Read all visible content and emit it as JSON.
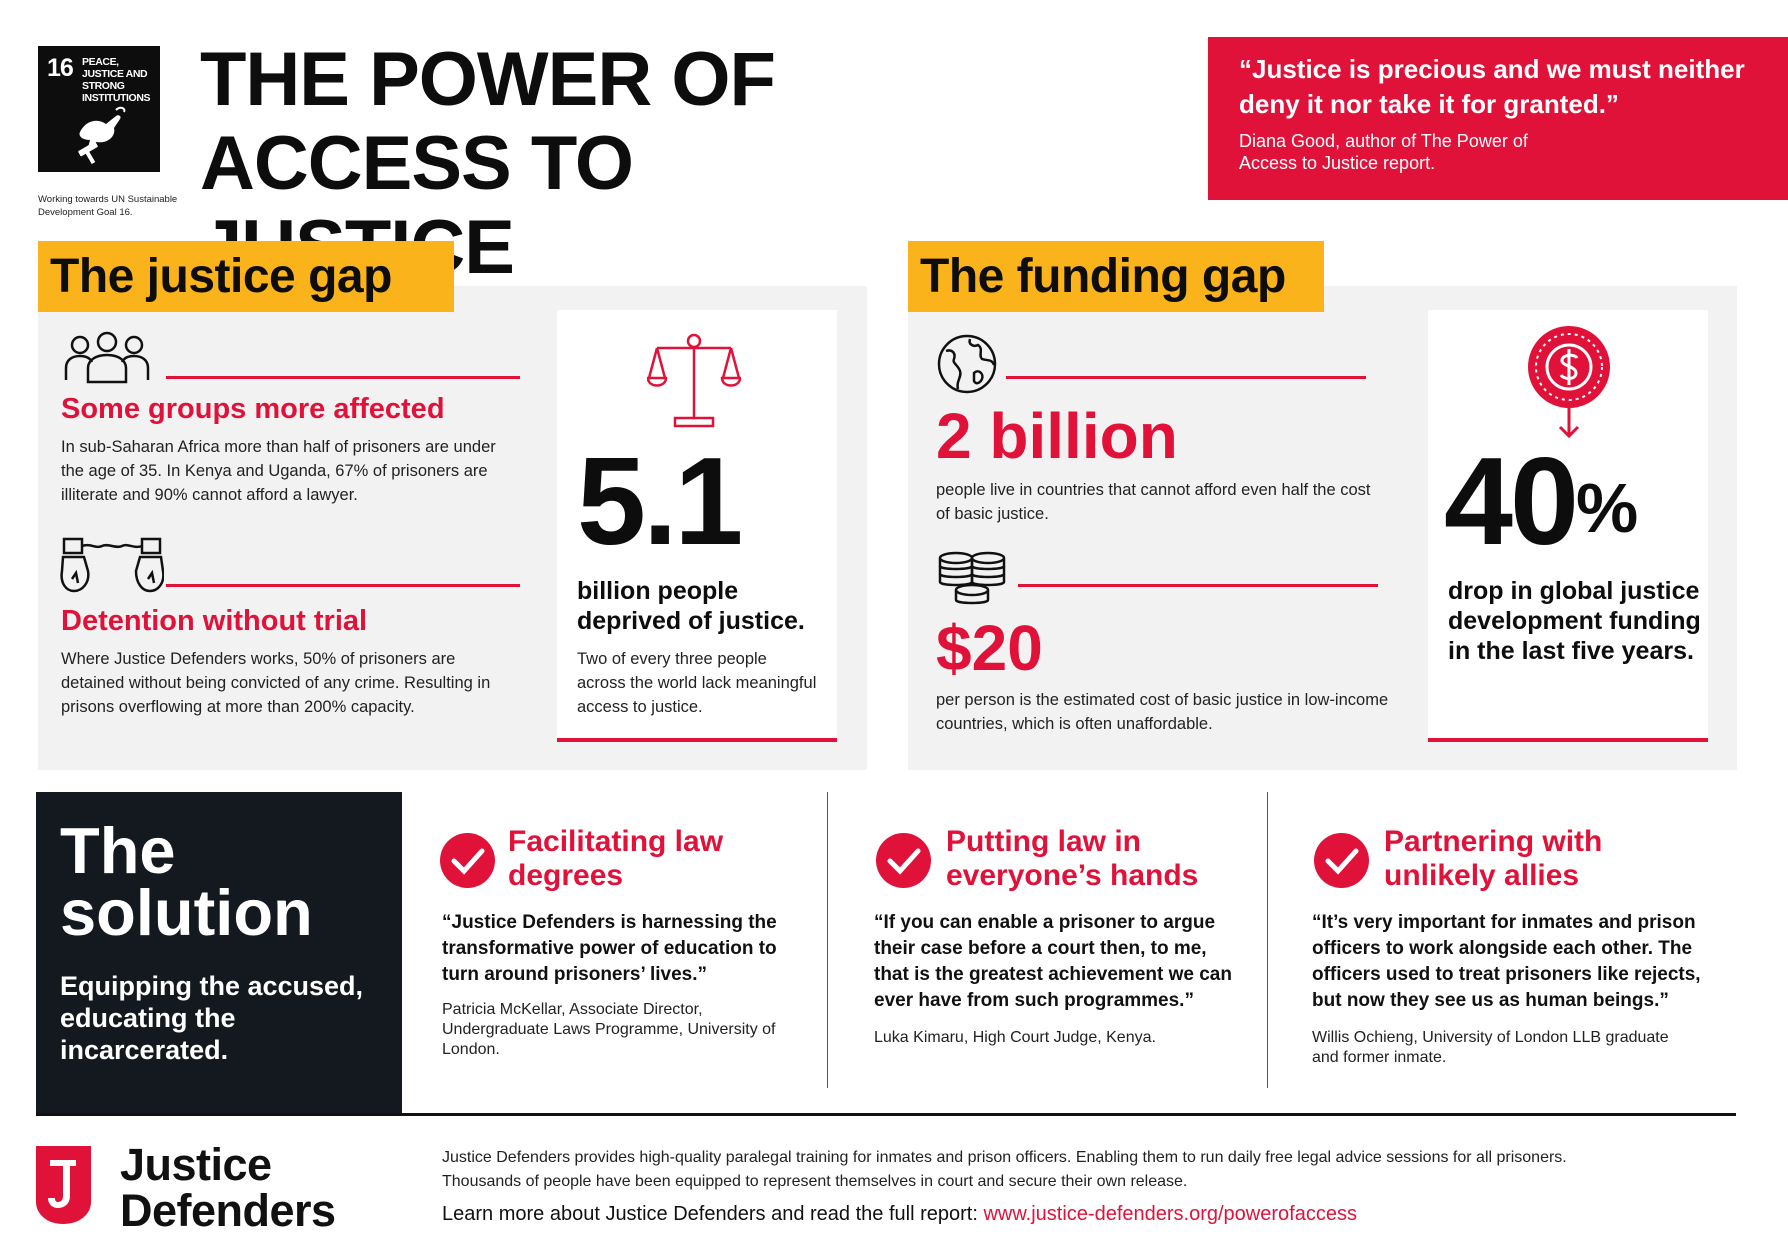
{
  "sdg": {
    "number": "16",
    "label": "PEACE, JUSTICE AND STRONG INSTITUTIONS",
    "caption": "Working towards UN Sustainable Development Goal 16."
  },
  "title": "THE POWER OF ACCESS TO JUSTICE",
  "quote": {
    "text": "“Justice is precious and we must neither deny it nor take it for granted.”",
    "author": "Diana Good, author of The Power of Access to Justice report."
  },
  "justice_gap": {
    "tag": "The justice gap",
    "items": [
      {
        "icon": "people-group-icon",
        "heading": "Some groups more affected",
        "body": "In sub-Saharan Africa more than half of prisoners are under the age of 35. In Kenya and Uganda, 67% of prisoners are illiterate and 90% cannot afford a lawyer."
      },
      {
        "icon": "handcuffs-icon",
        "heading": "Detention without trial",
        "body": "Where Justice Defenders works, 50% of prisoners are detained without being convicted of any crime. Resulting in prisons overflowing at more than 200% capacity."
      }
    ],
    "card": {
      "icon": "scales-icon",
      "number": "5.1",
      "bold": "billion people deprived of justice.",
      "body": "Two of every three people across the world lack meaningful access to justice."
    }
  },
  "funding_gap": {
    "tag": "The funding gap",
    "items": [
      {
        "icon": "globe-icon",
        "number": "2 billion",
        "body": "people live in countries that cannot afford even half the cost of basic justice."
      },
      {
        "icon": "coins-stack-icon",
        "number": "$20",
        "body": "per person is the estimated cost of basic justice in low-income countries, which is often unaffordable."
      }
    ],
    "card": {
      "icon": "dollar-down-icon",
      "number": "40",
      "suffix": "%",
      "bold": "drop in global justice development funding in the last five years."
    }
  },
  "solution": {
    "title": "The solution",
    "subtitle": "Equipping the accused, educating the incarcerated.",
    "columns": [
      {
        "heading": "Facilitating law degrees",
        "quote": "“Justice Defenders is harnessing the transformative power of education to turn around prisoners’ lives.”",
        "cite": "Patricia McKellar, Associate Director, Undergraduate Laws Programme, University of London."
      },
      {
        "heading": "Putting law in everyone’s hands",
        "quote": "“If you can enable a prisoner to argue their case before a court then, to me, that is the greatest achievement we can ever have from such programmes.”",
        "cite": "Luka Kimaru, High Court Judge, Kenya."
      },
      {
        "heading": "Partnering with unlikely allies",
        "quote": "“It’s very important for inmates and prison officers to work alongside each other. The officers used to treat prisoners like rejects, but now they see us as human beings.”",
        "cite": "Willis Ochieng, University of London LLB graduate and former inmate."
      }
    ]
  },
  "footer": {
    "logo_letter": "J",
    "logo_name": "Justice Defenders",
    "text": "Justice Defenders provides high-quality paralegal training for inmates and prison officers. Enabling them to run daily free legal advice sessions for all prisoners. Thousands of people have been equipped to represent themselves in court and secure their own release.",
    "learn_more": "Learn more about Justice Defenders and read the full report:",
    "url": "www.justice-defenders.org/powerofaccess"
  },
  "colors": {
    "red": "#e0123a",
    "yellow": "#fbb31c",
    "dark": "#14191f",
    "panel": "#f2f2f2"
  }
}
